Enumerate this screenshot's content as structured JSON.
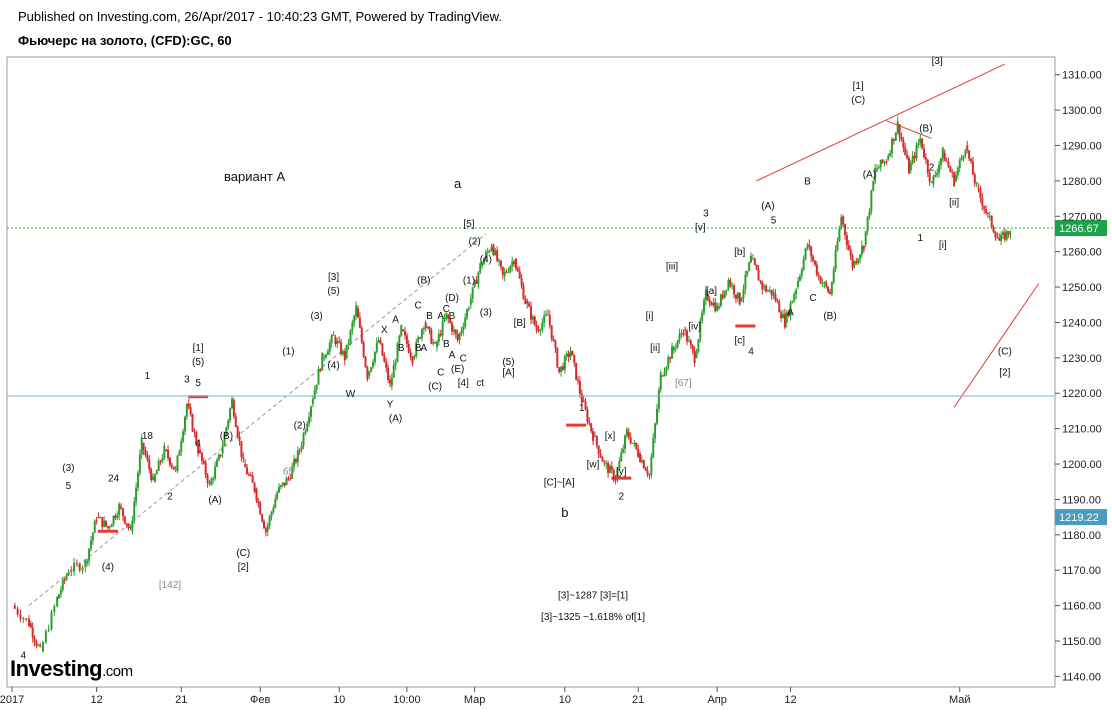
{
  "header": {
    "published": "Published on Investing.com, 26/Apr/2017 - 10:40:23 GMT, Powered by TradingView.",
    "symbol": "Фьючерс на золото, (CFD):GC, 60"
  },
  "logo": {
    "brand": "Investing",
    "suffix": ".com"
  },
  "colors": {
    "up": "#2f9e2f",
    "down": "#d62a2a",
    "annotation": "#e53935",
    "current_line": "#22bb22",
    "ref_line": "#7ab8d8",
    "axis": "#555555",
    "wave_label": "#111111"
  },
  "chart_data": {
    "type": "candlestick",
    "title": "Фьючерс на золото, (CFD):GC, 60",
    "ylim": [
      1137,
      1315
    ],
    "y_ticks": [
      1140,
      1150,
      1160,
      1170,
      1180,
      1190,
      1200,
      1210,
      1220,
      1230,
      1240,
      1250,
      1260,
      1270,
      1280,
      1290,
      1300,
      1310
    ],
    "x_ticks": [
      "2017",
      "12",
      "21",
      "Фев",
      "10",
      "10:00",
      "Мар",
      "10",
      "21",
      "Апр",
      "12",
      "Май"
    ],
    "price_path": [
      [
        0,
        1160
      ],
      [
        3,
        1155
      ],
      [
        5,
        1147
      ],
      [
        8,
        1162
      ],
      [
        10,
        1170
      ],
      [
        13,
        1172
      ],
      [
        15,
        1185
      ],
      [
        17,
        1182
      ],
      [
        19,
        1188
      ],
      [
        21,
        1181
      ],
      [
        23,
        1206
      ],
      [
        25,
        1195
      ],
      [
        27,
        1204
      ],
      [
        29,
        1198
      ],
      [
        31,
        1217
      ],
      [
        33,
        1204
      ],
      [
        35,
        1194
      ],
      [
        37,
        1203
      ],
      [
        39,
        1218
      ],
      [
        41,
        1200
      ],
      [
        43,
        1193
      ],
      [
        45,
        1181
      ],
      [
        47,
        1192
      ],
      [
        49,
        1196
      ],
      [
        51,
        1204
      ],
      [
        53,
        1217
      ],
      [
        55,
        1230
      ],
      [
        57,
        1236
      ],
      [
        59,
        1230
      ],
      [
        61,
        1244
      ],
      [
        63,
        1225
      ],
      [
        65,
        1235
      ],
      [
        67,
        1222
      ],
      [
        69,
        1238
      ],
      [
        71,
        1230
      ],
      [
        73,
        1240
      ],
      [
        75,
        1233
      ],
      [
        77,
        1242
      ],
      [
        79,
        1235
      ],
      [
        81,
        1245
      ],
      [
        83,
        1256
      ],
      [
        85,
        1262
      ],
      [
        87,
        1253
      ],
      [
        89,
        1258
      ],
      [
        91,
        1246
      ],
      [
        93,
        1238
      ],
      [
        95,
        1242
      ],
      [
        97,
        1226
      ],
      [
        99,
        1232
      ],
      [
        101,
        1218
      ],
      [
        103,
        1208
      ],
      [
        105,
        1200
      ],
      [
        107,
        1196
      ],
      [
        109,
        1209
      ],
      [
        111,
        1203
      ],
      [
        113,
        1197
      ],
      [
        115,
        1225
      ],
      [
        117,
        1232
      ],
      [
        119,
        1238
      ],
      [
        121,
        1230
      ],
      [
        123,
        1248
      ],
      [
        125,
        1244
      ],
      [
        127,
        1252
      ],
      [
        129,
        1246
      ],
      [
        131,
        1258
      ],
      [
        133,
        1250
      ],
      [
        135,
        1248
      ],
      [
        137,
        1240
      ],
      [
        139,
        1250
      ],
      [
        141,
        1262
      ],
      [
        143,
        1253
      ],
      [
        145,
        1248
      ],
      [
        147,
        1270
      ],
      [
        149,
        1256
      ],
      [
        151,
        1262
      ],
      [
        153,
        1283
      ],
      [
        155,
        1286
      ],
      [
        157,
        1296
      ],
      [
        159,
        1283
      ],
      [
        161,
        1292
      ],
      [
        163,
        1279
      ],
      [
        165,
        1288
      ],
      [
        167,
        1280
      ],
      [
        169,
        1290
      ],
      [
        171,
        1278
      ],
      [
        173,
        1270
      ],
      [
        175,
        1263
      ],
      [
        177,
        1266
      ]
    ],
    "current_price": 1266.67,
    "current_label": "1266.67",
    "reference_price": 1219.22,
    "reference_label": "1219.22",
    "wave_labels": [
      {
        "text": "вариант А",
        "x": 43,
        "y": 1280,
        "size": "big"
      },
      {
        "text": "a",
        "x": 79,
        "y": 1278,
        "size": "big"
      },
      {
        "text": "b",
        "x": 98,
        "y": 1185,
        "size": "big"
      },
      {
        "text": "[5]",
        "x": 81,
        "y": 1267
      },
      {
        "text": "(2)",
        "x": 82,
        "y": 1262
      },
      {
        "text": "(4)",
        "x": 84,
        "y": 1257
      },
      {
        "text": "(1)",
        "x": 81,
        "y": 1251
      },
      {
        "text": "(3)",
        "x": 84,
        "y": 1242
      },
      {
        "text": "[B]",
        "x": 90,
        "y": 1239
      },
      {
        "text": "(5)",
        "x": 88,
        "y": 1228
      },
      {
        "text": "[A]",
        "x": 88,
        "y": 1225
      },
      {
        "text": "[C]~[A]",
        "x": 97,
        "y": 1194
      },
      {
        "text": "1",
        "x": 101,
        "y": 1215
      },
      {
        "text": "[x]",
        "x": 106,
        "y": 1207
      },
      {
        "text": "[w]",
        "x": 103,
        "y": 1199
      },
      {
        "text": "[y]",
        "x": 108,
        "y": 1197
      },
      {
        "text": "2",
        "x": 108,
        "y": 1190
      },
      {
        "text": "[67]",
        "x": 119,
        "y": 1222
      },
      {
        "text": "[i]",
        "x": 113,
        "y": 1241
      },
      {
        "text": "[ii]",
        "x": 114,
        "y": 1232
      },
      {
        "text": "[iii]",
        "x": 117,
        "y": 1255
      },
      {
        "text": "[iv]",
        "x": 121,
        "y": 1238
      },
      {
        "text": "[v]",
        "x": 122,
        "y": 1266
      },
      {
        "text": "3",
        "x": 123,
        "y": 1270
      },
      {
        "text": "[a]",
        "x": 124,
        "y": 1248
      },
      {
        "text": "[b]",
        "x": 129,
        "y": 1259
      },
      {
        "text": "[c]",
        "x": 129,
        "y": 1234
      },
      {
        "text": "4",
        "x": 131,
        "y": 1231
      },
      {
        "text": "5",
        "x": 135,
        "y": 1268
      },
      {
        "text": "(A)",
        "x": 134,
        "y": 1272
      },
      {
        "text": "A",
        "x": 138,
        "y": 1242
      },
      {
        "text": "B",
        "x": 141,
        "y": 1279
      },
      {
        "text": "C",
        "x": 142,
        "y": 1246
      },
      {
        "text": "(B)",
        "x": 145,
        "y": 1241
      },
      {
        "text": "[1]",
        "x": 150,
        "y": 1306
      },
      {
        "text": "(C)",
        "x": 150,
        "y": 1302
      },
      {
        "text": "(A)",
        "x": 152,
        "y": 1281
      },
      {
        "text": "(B)",
        "x": 162,
        "y": 1294
      },
      {
        "text": "2",
        "x": 163,
        "y": 1283
      },
      {
        "text": "[ii]",
        "x": 167,
        "y": 1273
      },
      {
        "text": "1",
        "x": 161,
        "y": 1263
      },
      {
        "text": "[i]",
        "x": 165,
        "y": 1261
      },
      {
        "text": "[3]",
        "x": 164,
        "y": 1313
      },
      {
        "text": "(C)",
        "x": 176,
        "y": 1231
      },
      {
        "text": "[2]",
        "x": 176,
        "y": 1225
      },
      {
        "text": "[1]",
        "x": 33,
        "y": 1232
      },
      {
        "text": "1",
        "x": 24,
        "y": 1224
      },
      {
        "text": "3",
        "x": 31,
        "y": 1223
      },
      {
        "text": "(5)",
        "x": 33,
        "y": 1228
      },
      {
        "text": "5",
        "x": 33,
        "y": 1222
      },
      {
        "text": "4",
        "x": 33,
        "y": 1205
      },
      {
        "text": "18",
        "x": 24,
        "y": 1207
      },
      {
        "text": "2",
        "x": 28,
        "y": 1190
      },
      {
        "text": "(B)",
        "x": 38,
        "y": 1207
      },
      {
        "text": "(A)",
        "x": 36,
        "y": 1189
      },
      {
        "text": "(C)",
        "x": 41,
        "y": 1174
      },
      {
        "text": "[2]",
        "x": 41,
        "y": 1170
      },
      {
        "text": "(3)",
        "x": 10,
        "y": 1198
      },
      {
        "text": "5",
        "x": 10,
        "y": 1193
      },
      {
        "text": "24",
        "x": 18,
        "y": 1195
      },
      {
        "text": "(4)",
        "x": 17,
        "y": 1170
      },
      {
        "text": "[142]",
        "x": 28,
        "y": 1165
      },
      {
        "text": "65",
        "x": 49,
        "y": 1197
      },
      {
        "text": "(1)",
        "x": 49,
        "y": 1231
      },
      {
        "text": "(2)",
        "x": 51,
        "y": 1210
      },
      {
        "text": "(3)",
        "x": 54,
        "y": 1241
      },
      {
        "text": "[3]",
        "x": 57,
        "y": 1252
      },
      {
        "text": "(5)",
        "x": 57,
        "y": 1248
      },
      {
        "text": "(4)",
        "x": 57,
        "y": 1227
      },
      {
        "text": "W",
        "x": 60,
        "y": 1219
      },
      {
        "text": "X",
        "x": 66,
        "y": 1237
      },
      {
        "text": "Y",
        "x": 67,
        "y": 1216
      },
      {
        "text": "(A)",
        "x": 68,
        "y": 1212
      },
      {
        "text": "B",
        "x": 69,
        "y": 1232
      },
      {
        "text": "A",
        "x": 68,
        "y": 1240
      },
      {
        "text": "C",
        "x": 72,
        "y": 1244
      },
      {
        "text": "B",
        "x": 72,
        "y": 1232
      },
      {
        "text": "(B)",
        "x": 73,
        "y": 1251
      },
      {
        "text": "B",
        "x": 74,
        "y": 1241
      },
      {
        "text": "A",
        "x": 73,
        "y": 1232
      },
      {
        "text": "A",
        "x": 76,
        "y": 1241
      },
      {
        "text": "(D)",
        "x": 78,
        "y": 1246
      },
      {
        "text": "B",
        "x": 77,
        "y": 1233
      },
      {
        "text": "C",
        "x": 77,
        "y": 1243
      },
      {
        "text": "B",
        "x": 78,
        "y": 1241
      },
      {
        "text": "A",
        "x": 78,
        "y": 1230
      },
      {
        "text": "C",
        "x": 80,
        "y": 1229
      },
      {
        "text": "C",
        "x": 76,
        "y": 1225
      },
      {
        "text": "(E)",
        "x": 79,
        "y": 1226
      },
      {
        "text": "(C)",
        "x": 75,
        "y": 1221
      },
      {
        "text": "[4]",
        "x": 80,
        "y": 1222
      },
      {
        "text": "ct",
        "x": 83,
        "y": 1222
      },
      {
        "text": "4",
        "x": 2,
        "y": 1145
      },
      {
        "text": "[3]~1287 [3]=[1]",
        "x": 103,
        "y": 1162
      },
      {
        "text": "[3]~1325 ~1.618% of[1]",
        "x": 103,
        "y": 1156
      }
    ],
    "annotation_lines": [
      [
        [
          132,
          1280
        ],
        [
          176,
          1313
        ]
      ],
      [
        [
          167,
          1216
        ],
        [
          182,
          1251
        ]
      ],
      [
        [
          3,
          1160
        ],
        [
          84,
          1265
        ]
      ],
      [
        [
          155,
          1297
        ],
        [
          163,
          1292
        ]
      ]
    ]
  }
}
